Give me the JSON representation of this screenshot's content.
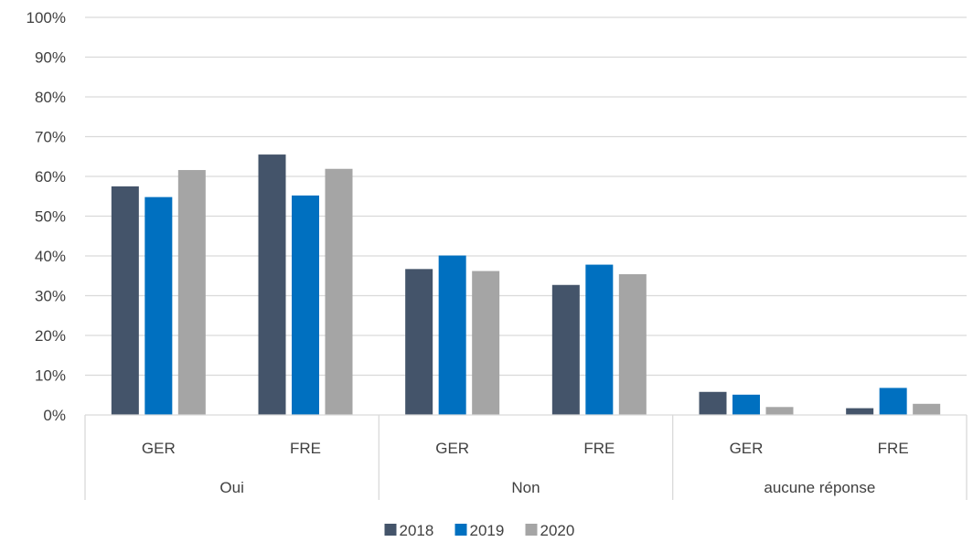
{
  "chart_data": {
    "type": "bar",
    "title": "",
    "xlabel": "",
    "ylabel": "",
    "ylim": [
      0,
      100
    ],
    "yticks": [
      "0%",
      "10%",
      "20%",
      "30%",
      "40%",
      "50%",
      "60%",
      "70%",
      "80%",
      "90%",
      "100%"
    ],
    "grid": true,
    "legend_position": "bottom",
    "groups": [
      {
        "label": "Oui",
        "categories": [
          "GER",
          "FRE"
        ]
      },
      {
        "label": "Non",
        "categories": [
          "GER",
          "FRE"
        ]
      },
      {
        "label": "aucune réponse",
        "categories": [
          "GER",
          "FRE"
        ]
      }
    ],
    "categories": [
      "Oui GER",
      "Oui FRE",
      "Non GER",
      "Non FRE",
      "aucune réponse GER",
      "aucune réponse FRE"
    ],
    "series": [
      {
        "name": "2018",
        "color": "#44546A",
        "values": [
          57.5,
          65.5,
          36.7,
          32.7,
          5.8,
          1.7
        ]
      },
      {
        "name": "2019",
        "color": "#0070C0",
        "values": [
          54.8,
          55.2,
          40.1,
          37.8,
          5.1,
          6.8
        ]
      },
      {
        "name": "2020",
        "color": "#A5A5A5",
        "values": [
          61.6,
          61.9,
          36.2,
          35.4,
          2.0,
          2.8
        ]
      }
    ]
  }
}
